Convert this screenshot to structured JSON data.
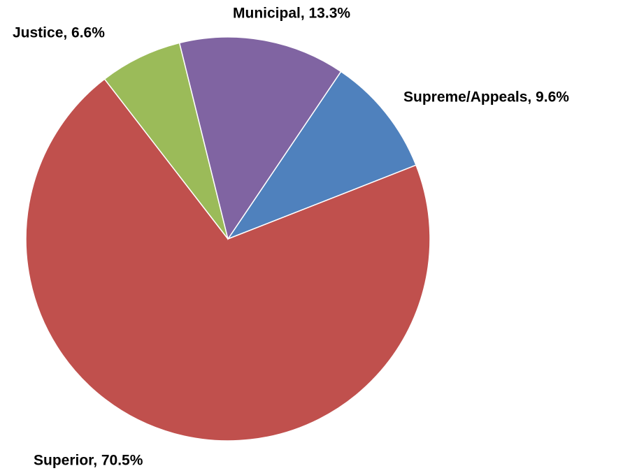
{
  "chart_data": {
    "type": "pie",
    "values": [
      9.6,
      70.5,
      6.6,
      13.3
    ],
    "value_labels": [
      "Supreme/Appeals, 9.6%",
      "Superior, 70.5%",
      "Justice, 6.6%",
      "Municipal, 13.3%"
    ],
    "colors": [
      "#4f81bd",
      "#c0504d",
      "#9bbb59",
      "#8064a2"
    ]
  }
}
